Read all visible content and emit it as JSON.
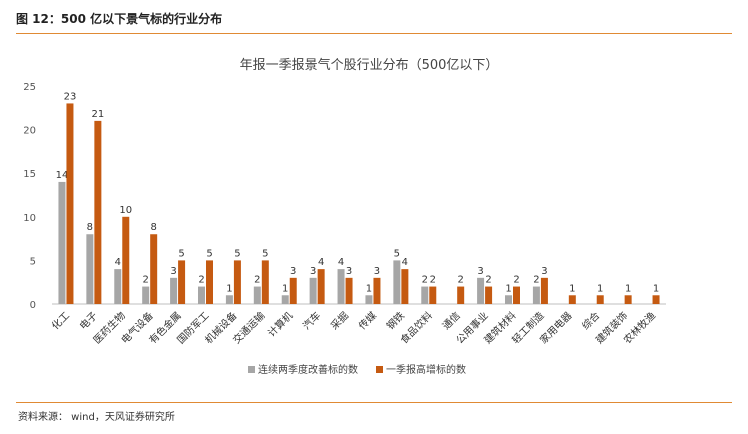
{
  "figure": {
    "caption": "图 12：500 亿以下景气标的行业分布",
    "source": "资料来源： wind，天风证券研究所"
  },
  "colors": {
    "accent_rule": "#e08a34",
    "series_gray": "#a6a6a6",
    "series_orange": "#c55a11"
  },
  "chart_data": {
    "type": "bar",
    "title": "年报一季报景气个股行业分布（500亿以下）",
    "xlabel": "",
    "ylabel": "",
    "ylim": [
      0,
      25
    ],
    "yticks": [
      0,
      5,
      10,
      15,
      20,
      25
    ],
    "grid": false,
    "legend_position": "bottom",
    "categories": [
      "化工",
      "电子",
      "医药生物",
      "电气设备",
      "有色金属",
      "国防军工",
      "机械设备",
      "交通运输",
      "计算机",
      "汽车",
      "采掘",
      "传媒",
      "钢铁",
      "食品饮料",
      "通信",
      "公用事业",
      "建筑材料",
      "轻工制造",
      "家用电器",
      "综合",
      "建筑装饰",
      "农林牧渔"
    ],
    "series": [
      {
        "name": "连续两季度改善标的数",
        "color": "#a6a6a6",
        "values": [
          14,
          8,
          4,
          2,
          3,
          2,
          1,
          2,
          1,
          3,
          4,
          1,
          5,
          2,
          null,
          3,
          1,
          2,
          null,
          null,
          null,
          null
        ]
      },
      {
        "name": "一季报高增标的数",
        "color": "#c55a11",
        "values": [
          23,
          21,
          10,
          8,
          5,
          5,
          5,
          5,
          3,
          4,
          3,
          3,
          4,
          2,
          2,
          2,
          2,
          3,
          1,
          1,
          1,
          1
        ]
      }
    ]
  }
}
